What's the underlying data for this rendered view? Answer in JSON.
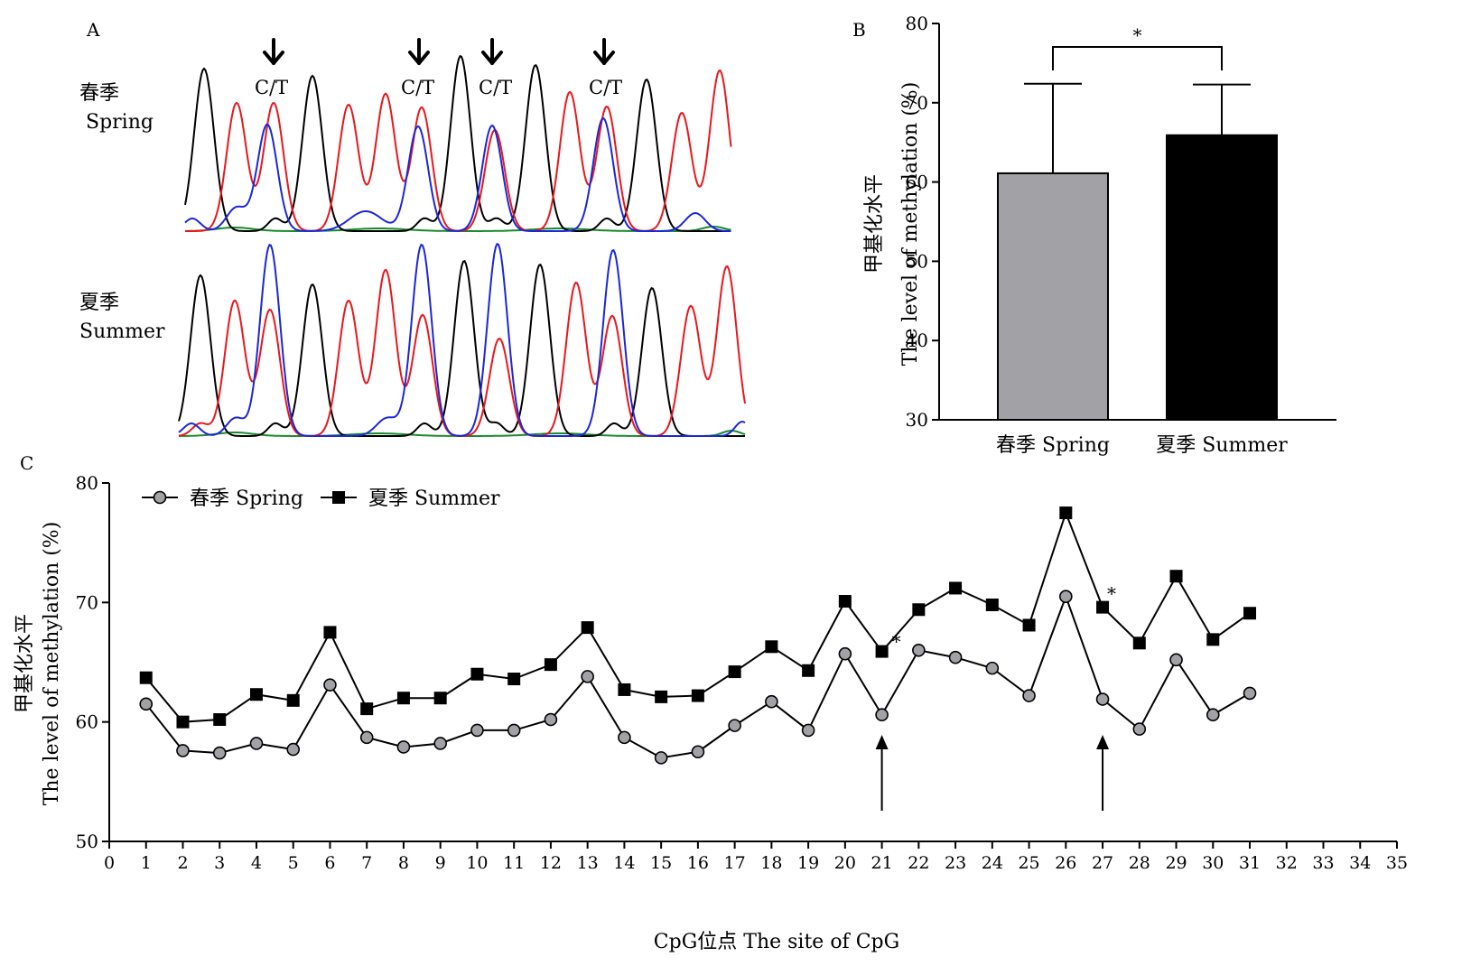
{
  "panels": {
    "a": {
      "letter": "A",
      "arrow_label": "C/T",
      "rows": [
        {
          "label_cn": "春季",
          "label_en": "Spring"
        },
        {
          "label_cn": "夏季",
          "label_en": "Summer"
        }
      ],
      "trace_colors": {
        "black": "#000000",
        "red": "#e8171d",
        "blue": "#1b27d6",
        "green": "#1a8a2e"
      }
    },
    "b": {
      "letter": "B"
    },
    "c": {
      "letter": "C"
    }
  },
  "chart_data": [
    {
      "id": "B",
      "type": "bar",
      "categories": [
        "春季 Spring",
        "夏季 Summer"
      ],
      "values": [
        61.1,
        65.9
      ],
      "error_upper": [
        72.4,
        72.3
      ],
      "colors": [
        "#a2a1a6",
        "#000000"
      ],
      "ylabel_cn": "甲基化水平",
      "ylabel_en": "The level of methylation (%)",
      "ylim": [
        30,
        80
      ],
      "yticks": [
        30,
        40,
        50,
        60,
        70,
        80
      ],
      "significance": "*"
    },
    {
      "id": "C",
      "type": "line",
      "x": [
        1,
        2,
        3,
        4,
        5,
        6,
        7,
        8,
        9,
        10,
        11,
        12,
        13,
        14,
        15,
        16,
        17,
        18,
        19,
        20,
        21,
        22,
        23,
        24,
        25,
        26,
        27,
        28,
        29,
        30,
        31
      ],
      "series": [
        {
          "name": "春季 Spring",
          "marker": "circle",
          "values": [
            61.5,
            57.6,
            57.4,
            58.2,
            57.7,
            63.1,
            58.7,
            57.9,
            58.2,
            59.3,
            59.3,
            60.2,
            63.8,
            58.7,
            57.0,
            57.5,
            59.7,
            61.7,
            59.3,
            65.7,
            60.6,
            66.0,
            65.4,
            64.5,
            62.2,
            70.5,
            61.9,
            59.4,
            65.2,
            60.6,
            62.4
          ]
        },
        {
          "name": "夏季 Summer",
          "marker": "square",
          "values": [
            63.7,
            60.0,
            60.2,
            62.3,
            61.8,
            67.5,
            61.1,
            62.0,
            62.0,
            64.0,
            63.6,
            64.8,
            67.9,
            62.7,
            62.1,
            62.2,
            64.2,
            66.3,
            64.3,
            70.1,
            65.9,
            69.4,
            71.2,
            69.8,
            68.1,
            77.5,
            69.6,
            66.6,
            72.2,
            66.9,
            69.1
          ]
        }
      ],
      "xlabel": "CpG位点 The site of CpG",
      "ylabel_cn": "甲基化水平",
      "ylabel_en": "The level of methylation (%)",
      "xlim": [
        0,
        35
      ],
      "xticks": [
        0,
        1,
        2,
        3,
        4,
        5,
        6,
        7,
        8,
        9,
        10,
        11,
        12,
        13,
        14,
        15,
        16,
        17,
        18,
        19,
        20,
        21,
        22,
        23,
        24,
        25,
        26,
        27,
        28,
        29,
        30,
        31,
        32,
        33,
        34,
        35
      ],
      "ylim": [
        50,
        80
      ],
      "yticks": [
        50,
        60,
        70,
        80
      ],
      "legend_position": "top-left",
      "annotations": [
        {
          "text": "*",
          "x": 21,
          "arrow": true
        },
        {
          "text": "*",
          "x": 27,
          "arrow": true
        }
      ]
    }
  ]
}
